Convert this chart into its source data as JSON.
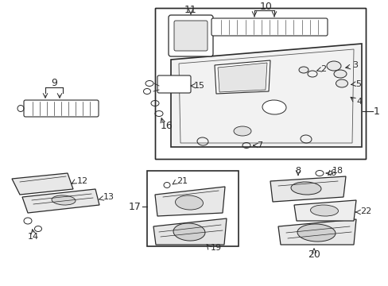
{
  "bg_color": "#ffffff",
  "lc": "#2a2a2a",
  "fs": 8,
  "figsize": [
    4.89,
    3.6
  ],
  "dpi": 100,
  "xlim": [
    0,
    489
  ],
  "ylim": [
    0,
    360
  ]
}
